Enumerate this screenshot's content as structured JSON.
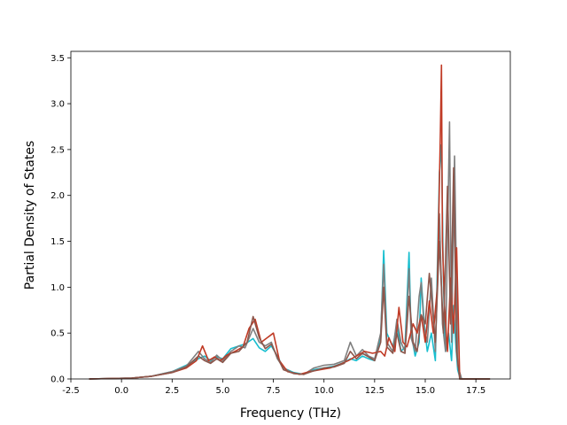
{
  "chart_data": {
    "type": "line",
    "xlabel": "Frequency (THz)",
    "ylabel": "Partial Density of States",
    "xlim": [
      -2.5,
      19.2
    ],
    "ylim": [
      0.0,
      3.57
    ],
    "xticks": [
      "-2.5",
      "0.0",
      "2.5",
      "5.0",
      "7.5",
      "10.0",
      "12.5",
      "15.0",
      "17.5"
    ],
    "yticks": [
      "0.0",
      "0.5",
      "1.0",
      "1.5",
      "2.0",
      "2.5",
      "3.0",
      "3.5"
    ],
    "grid": false,
    "legend": "none",
    "series": [
      {
        "color": "#17becf",
        "x": [
          -1.6,
          0.5,
          1.5,
          2.5,
          3.2,
          3.8,
          4.1,
          4.4,
          4.7,
          5.0,
          5.4,
          5.8,
          6.1,
          6.5,
          6.8,
          7.1,
          7.4,
          7.7,
          8.0,
          8.5,
          9.0,
          9.5,
          10.0,
          10.5,
          11.0,
          11.3,
          11.6,
          11.9,
          12.2,
          12.5,
          12.8,
          12.95,
          13.1,
          13.4,
          13.6,
          13.8,
          14.0,
          14.2,
          14.3,
          14.5,
          14.7,
          14.8,
          14.95,
          15.1,
          15.3,
          15.5,
          15.7,
          15.8,
          15.9,
          16.0,
          16.15,
          16.3,
          16.4,
          16.5,
          16.6,
          16.7,
          16.8,
          18.2
        ],
        "y": [
          0,
          0.01,
          0.03,
          0.08,
          0.15,
          0.22,
          0.25,
          0.2,
          0.24,
          0.22,
          0.33,
          0.36,
          0.38,
          0.44,
          0.34,
          0.3,
          0.36,
          0.25,
          0.12,
          0.07,
          0.05,
          0.1,
          0.12,
          0.14,
          0.18,
          0.22,
          0.2,
          0.25,
          0.22,
          0.2,
          0.45,
          1.4,
          0.5,
          0.35,
          0.6,
          0.3,
          0.35,
          1.38,
          0.5,
          0.25,
          0.4,
          1.1,
          0.6,
          0.3,
          0.5,
          0.2,
          2.25,
          2.55,
          1.0,
          0.3,
          0.5,
          0.2,
          0.8,
          0.4,
          0.1,
          0.02,
          0,
          0
        ]
      },
      {
        "color": "#7f7f7f",
        "x": [
          -1.6,
          0.5,
          1.5,
          2.5,
          3.2,
          3.8,
          4.1,
          4.4,
          4.7,
          5.0,
          5.4,
          5.8,
          6.1,
          6.5,
          6.8,
          7.1,
          7.4,
          7.7,
          8.0,
          8.5,
          9.0,
          9.5,
          10.0,
          10.5,
          11.0,
          11.3,
          11.6,
          11.9,
          12.2,
          12.5,
          12.8,
          12.95,
          13.1,
          13.4,
          13.6,
          13.8,
          14.0,
          14.2,
          14.3,
          14.5,
          14.7,
          14.8,
          14.95,
          15.1,
          15.3,
          15.5,
          15.7,
          15.85,
          16.0,
          16.2,
          16.3,
          16.45,
          16.6,
          16.8,
          18.2
        ],
        "y": [
          0,
          0.01,
          0.03,
          0.08,
          0.14,
          0.3,
          0.22,
          0.18,
          0.26,
          0.2,
          0.3,
          0.36,
          0.34,
          0.55,
          0.4,
          0.36,
          0.4,
          0.22,
          0.12,
          0.06,
          0.05,
          0.12,
          0.15,
          0.16,
          0.2,
          0.4,
          0.25,
          0.32,
          0.25,
          0.22,
          0.5,
          1.25,
          0.4,
          0.3,
          0.65,
          0.4,
          0.3,
          1.2,
          0.45,
          0.3,
          0.9,
          1.05,
          0.55,
          0.4,
          1.1,
          0.3,
          1.8,
          0.6,
          0.3,
          2.8,
          0.4,
          2.43,
          0.15,
          0,
          0
        ]
      },
      {
        "color": "#c03a25",
        "x": [
          -1.6,
          0.5,
          1.5,
          2.5,
          3.2,
          3.7,
          4.0,
          4.3,
          4.6,
          4.9,
          5.2,
          5.6,
          6.0,
          6.3,
          6.6,
          6.9,
          7.2,
          7.5,
          7.8,
          8.2,
          8.8,
          9.3,
          9.8,
          10.3,
          10.8,
          11.2,
          11.6,
          12.0,
          12.4,
          12.8,
          13.0,
          13.2,
          13.5,
          13.7,
          13.9,
          14.1,
          14.4,
          14.6,
          14.8,
          15.0,
          15.2,
          15.4,
          15.6,
          15.75,
          15.8,
          15.85,
          15.95,
          16.1,
          16.25,
          16.4,
          16.55,
          16.7,
          18.2
        ],
        "y": [
          0,
          0.01,
          0.03,
          0.07,
          0.12,
          0.2,
          0.36,
          0.2,
          0.24,
          0.2,
          0.26,
          0.3,
          0.35,
          0.55,
          0.65,
          0.4,
          0.45,
          0.5,
          0.2,
          0.08,
          0.05,
          0.08,
          0.1,
          0.12,
          0.16,
          0.2,
          0.25,
          0.3,
          0.28,
          0.3,
          0.25,
          0.45,
          0.3,
          0.78,
          0.4,
          0.35,
          0.6,
          0.5,
          0.7,
          0.4,
          0.85,
          0.5,
          1.0,
          2.7,
          3.42,
          1.5,
          0.8,
          0.3,
          1.1,
          0.5,
          1.43,
          0,
          0
        ]
      },
      {
        "color": "#8c564b",
        "x": [
          -1.6,
          0.5,
          1.5,
          2.5,
          3.2,
          3.8,
          4.1,
          4.4,
          4.7,
          5.0,
          5.4,
          5.8,
          6.2,
          6.5,
          6.8,
          7.1,
          7.4,
          7.7,
          8.0,
          8.5,
          9.0,
          9.5,
          10.0,
          10.5,
          11.0,
          11.3,
          11.6,
          11.9,
          12.2,
          12.5,
          12.8,
          12.95,
          13.1,
          13.4,
          13.6,
          13.8,
          14.0,
          14.2,
          14.4,
          14.6,
          14.8,
          15.0,
          15.2,
          15.5,
          15.7,
          15.9,
          16.1,
          16.25,
          16.4,
          16.55,
          16.7,
          18.2
        ],
        "y": [
          0,
          0.01,
          0.03,
          0.07,
          0.13,
          0.25,
          0.2,
          0.17,
          0.22,
          0.18,
          0.28,
          0.3,
          0.4,
          0.68,
          0.45,
          0.33,
          0.38,
          0.24,
          0.1,
          0.06,
          0.05,
          0.09,
          0.12,
          0.13,
          0.17,
          0.3,
          0.22,
          0.28,
          0.24,
          0.2,
          0.4,
          1.0,
          0.35,
          0.28,
          0.5,
          0.3,
          0.28,
          0.9,
          0.4,
          0.3,
          0.7,
          0.6,
          1.15,
          0.4,
          1.5,
          0.5,
          2.1,
          0.6,
          2.3,
          0.3,
          0,
          0
        ]
      }
    ]
  }
}
